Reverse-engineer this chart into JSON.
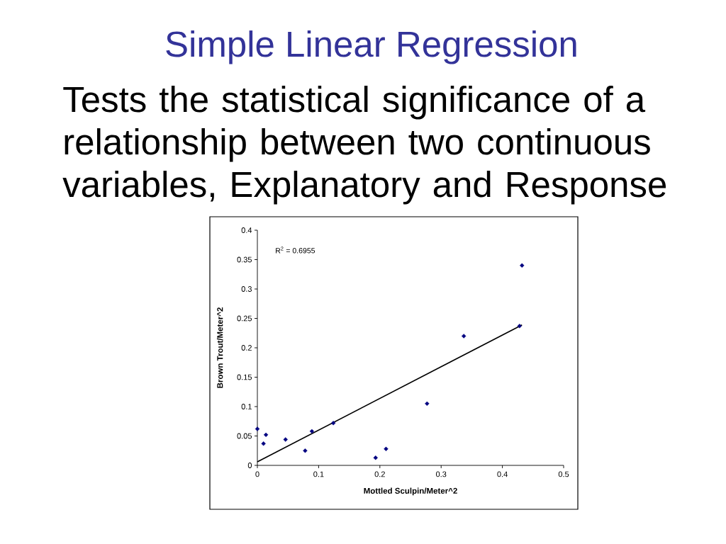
{
  "chart_data": {
    "type": "scatter",
    "title": "Simple Linear Regression",
    "subtitle": "Tests the statistical significance of a relationship between two continuous variables, Explanatory and Response",
    "xlabel": "Mottled Sculpin/Meter^2",
    "ylabel": "Brown Trout/Meter^2",
    "annotations": [
      "R$^{2}$ = 0.6955"
    ],
    "xlim": [
      0,
      0.5
    ],
    "ylim": [
      0,
      0.4
    ],
    "xticks": [
      0,
      0.1,
      0.2,
      0.3,
      0.4,
      0.5
    ],
    "yticks": [
      0,
      0.05,
      0.1,
      0.15,
      0.2,
      0.25,
      0.3,
      0.35,
      0.4
    ],
    "grid": false,
    "marker": "diamond",
    "series": [
      {
        "color": "#000080",
        "x": [
          0,
          0.01,
          0.014,
          0.046,
          0.078,
          0.089,
          0.124,
          0.193,
          0.21,
          0.277,
          0.337,
          0.428,
          0.432
        ],
        "values": [
          0.062,
          0.037,
          0.052,
          0.044,
          0.025,
          0.058,
          0.072,
          0.013,
          0.028,
          0.105,
          0.22,
          0.237,
          0.34
        ]
      },
      {
        "type": "line",
        "color": "#000000",
        "marker": "none",
        "line_style": "solid",
        "x": [
          0,
          0.432
        ],
        "values": [
          0.006,
          0.239
        ]
      }
    ]
  }
}
